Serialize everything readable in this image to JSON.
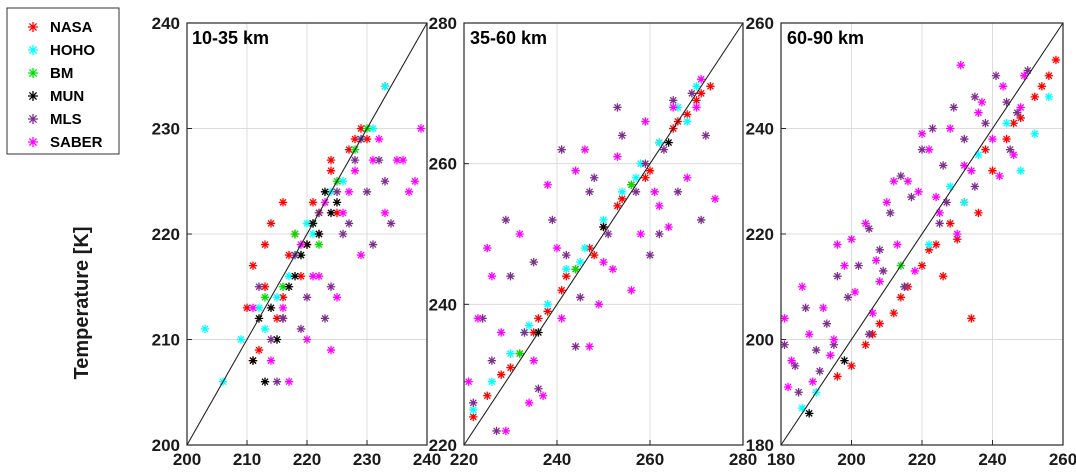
{
  "y_axis_label": "Temperature [K]",
  "legend": [
    {
      "name": "NASA",
      "color": "#ff0000"
    },
    {
      "name": "HOHO",
      "color": "#00ffff"
    },
    {
      "name": "BM",
      "color": "#00e000"
    },
    {
      "name": "MUN",
      "color": "#000000"
    },
    {
      "name": "MLS",
      "color": "#7e2f8e"
    },
    {
      "name": "SABER",
      "color": "#ff00ff"
    }
  ],
  "chart_data": [
    {
      "type": "scatter",
      "title": "10-35 km",
      "xlim": [
        200,
        240
      ],
      "ylim": [
        200,
        240
      ],
      "xticks": [
        200,
        210,
        220,
        230,
        240
      ],
      "yticks": [
        200,
        210,
        220,
        230,
        240
      ],
      "grid": true,
      "reference_line": "1:1",
      "series": [
        {
          "name": "NASA",
          "x": [
            211,
            210,
            213,
            216,
            212,
            214,
            218,
            216,
            220,
            222,
            224,
            227,
            229,
            233,
            211,
            215,
            219,
            222,
            225,
            230,
            213,
            217,
            221,
            224,
            228
          ],
          "y": [
            217,
            213,
            219,
            214,
            209,
            221,
            220,
            223,
            219,
            222,
            226,
            228,
            230,
            234,
            208,
            212,
            216,
            220,
            222,
            229,
            215,
            218,
            223,
            227,
            229
          ]
        },
        {
          "name": "HOHO",
          "x": [
            203,
            206,
            209,
            212,
            215,
            218,
            221,
            224,
            226,
            229,
            231,
            233,
            213,
            217,
            220
          ],
          "y": [
            211,
            206,
            210,
            213,
            214,
            218,
            220,
            224,
            225,
            229,
            230,
            234,
            211,
            216,
            221
          ]
        },
        {
          "name": "BM",
          "x": [
            213,
            216,
            219,
            222,
            225,
            228,
            230,
            218,
            221
          ],
          "y": [
            214,
            215,
            218,
            219,
            225,
            228,
            230,
            220,
            221
          ]
        },
        {
          "name": "MUN",
          "x": [
            211,
            212,
            214,
            216,
            218,
            220,
            221,
            223,
            224,
            213,
            215,
            217,
            219,
            222,
            225
          ],
          "y": [
            208,
            212,
            213,
            212,
            216,
            219,
            221,
            224,
            222,
            206,
            210,
            215,
            218,
            220,
            223
          ]
        },
        {
          "name": "MLS",
          "x": [
            212,
            214,
            216,
            218,
            220,
            222,
            224,
            226,
            228,
            230,
            232,
            234,
            223,
            227,
            231,
            219,
            225,
            229,
            233,
            215
          ],
          "y": [
            215,
            210,
            212,
            218,
            214,
            222,
            215,
            220,
            227,
            224,
            227,
            221,
            212,
            221,
            219,
            211,
            224,
            229,
            225,
            206
          ]
        },
        {
          "name": "SABER",
          "x": [
            211,
            214,
            217,
            219,
            221,
            223,
            225,
            227,
            229,
            231,
            233,
            235,
            237,
            239,
            216,
            220,
            224,
            228,
            232,
            236,
            238,
            222,
            226
          ],
          "y": [
            213,
            208,
            206,
            219,
            216,
            223,
            214,
            224,
            218,
            227,
            222,
            227,
            224,
            230,
            213,
            210,
            209,
            226,
            229,
            227,
            225,
            216,
            222
          ]
        }
      ]
    },
    {
      "type": "scatter",
      "title": "35-60 km",
      "xlim": [
        220,
        280
      ],
      "ylim": [
        220,
        280
      ],
      "xticks": [
        220,
        240,
        260,
        280
      ],
      "yticks": [
        220,
        240,
        260,
        280
      ],
      "grid": true,
      "reference_line": "1:1",
      "series": [
        {
          "name": "NASA",
          "x": [
            222,
            225,
            228,
            232,
            235,
            238,
            241,
            244,
            247,
            250,
            253,
            256,
            259,
            262,
            265,
            268,
            271,
            273,
            230,
            236,
            242,
            248,
            254,
            260,
            266,
            270
          ],
          "y": [
            224,
            227,
            230,
            233,
            236,
            239,
            242,
            245,
            248,
            251,
            254,
            257,
            258,
            263,
            265,
            267,
            270,
            271,
            231,
            238,
            244,
            247,
            255,
            259,
            266,
            269
          ]
        },
        {
          "name": "HOHO",
          "x": [
            222,
            226,
            230,
            234,
            238,
            242,
            246,
            250,
            254,
            258,
            262,
            266,
            270,
            233,
            245,
            257,
            268
          ],
          "y": [
            225,
            229,
            233,
            237,
            240,
            245,
            248,
            252,
            256,
            260,
            263,
            268,
            271,
            236,
            246,
            258,
            266
          ]
        },
        {
          "name": "BM",
          "x": [
            232,
            244,
            256
          ],
          "y": [
            233,
            245,
            257
          ]
        },
        {
          "name": "MUN",
          "x": [
            236,
            250,
            264
          ],
          "y": [
            236,
            251,
            263
          ]
        },
        {
          "name": "MLS",
          "x": [
            222,
            224,
            227,
            230,
            233,
            236,
            239,
            242,
            245,
            248,
            251,
            254,
            257,
            260,
            263,
            266,
            269,
            272,
            229,
            241,
            253,
            265,
            235,
            247,
            259,
            271,
            226,
            244,
            262
          ],
          "y": [
            226,
            238,
            222,
            244,
            236,
            228,
            252,
            247,
            241,
            258,
            250,
            264,
            256,
            247,
            262,
            256,
            270,
            264,
            252,
            262,
            268,
            269,
            246,
            256,
            260,
            252,
            232,
            234,
            250
          ]
        },
        {
          "name": "SABER",
          "x": [
            221,
            223,
            226,
            229,
            232,
            235,
            238,
            241,
            244,
            247,
            250,
            253,
            256,
            259,
            262,
            265,
            268,
            271,
            274,
            228,
            240,
            252,
            264,
            234,
            246,
            258,
            270,
            225,
            237,
            249,
            261
          ],
          "y": [
            229,
            238,
            244,
            222,
            250,
            232,
            257,
            238,
            259,
            234,
            246,
            261,
            242,
            266,
            254,
            268,
            258,
            272,
            255,
            236,
            248,
            245,
            251,
            226,
            262,
            250,
            268,
            248,
            227,
            240,
            256
          ]
        }
      ]
    },
    {
      "type": "scatter",
      "title": "60-90 km",
      "xlim": [
        180,
        260
      ],
      "ylim": [
        180,
        260
      ],
      "xticks": [
        180,
        200,
        220,
        240,
        260
      ],
      "yticks": [
        180,
        200,
        220,
        240,
        260
      ],
      "grid": true,
      "reference_line": "1:1",
      "series": [
        {
          "name": "NASA",
          "x": [
            196,
            200,
            204,
            208,
            212,
            216,
            220,
            224,
            228,
            232,
            236,
            240,
            244,
            248,
            252,
            256,
            258,
            206,
            214,
            222,
            230,
            238,
            246,
            254,
            234,
            226
          ],
          "y": [
            193,
            195,
            199,
            203,
            205,
            210,
            214,
            218,
            222,
            226,
            224,
            232,
            238,
            242,
            246,
            250,
            253,
            201,
            208,
            217,
            219,
            236,
            241,
            248,
            204,
            212
          ]
        },
        {
          "name": "HOHO",
          "x": [
            186,
            190,
            215,
            222,
            228,
            236,
            244,
            252,
            256,
            248,
            232
          ],
          "y": [
            187,
            190,
            210,
            218,
            229,
            235,
            241,
            239,
            246,
            232,
            226
          ]
        },
        {
          "name": "BM",
          "x": [
            214
          ],
          "y": [
            214
          ]
        },
        {
          "name": "MUN",
          "x": [
            188,
            198
          ],
          "y": [
            186,
            196
          ]
        },
        {
          "name": "MLS",
          "x": [
            181,
            184,
            187,
            190,
            193,
            196,
            199,
            202,
            205,
            208,
            211,
            214,
            217,
            220,
            223,
            226,
            229,
            232,
            235,
            238,
            241,
            244,
            247,
            250,
            185,
            195,
            205,
            215,
            225,
            235,
            245,
            191,
            209,
            227
          ],
          "y": [
            199,
            195,
            206,
            198,
            203,
            212,
            208,
            214,
            221,
            217,
            224,
            231,
            227,
            236,
            240,
            233,
            244,
            238,
            246,
            241,
            250,
            245,
            243,
            251,
            190,
            199,
            201,
            210,
            222,
            229,
            236,
            194,
            213,
            226
          ]
        },
        {
          "name": "SABER",
          "x": [
            181,
            183,
            186,
            189,
            192,
            195,
            198,
            201,
            204,
            207,
            210,
            213,
            216,
            219,
            222,
            225,
            228,
            231,
            234,
            237,
            240,
            243,
            246,
            249,
            182,
            188,
            194,
            200,
            206,
            212,
            218,
            224,
            230,
            236,
            242,
            248,
            196,
            208,
            220,
            232
          ],
          "y": [
            204,
            196,
            210,
            192,
            206,
            200,
            214,
            209,
            222,
            215,
            226,
            218,
            230,
            228,
            236,
            224,
            240,
            252,
            232,
            245,
            238,
            248,
            235,
            250,
            191,
            201,
            197,
            219,
            205,
            230,
            213,
            227,
            220,
            243,
            231,
            244,
            218,
            211,
            239,
            233
          ]
        }
      ]
    }
  ]
}
